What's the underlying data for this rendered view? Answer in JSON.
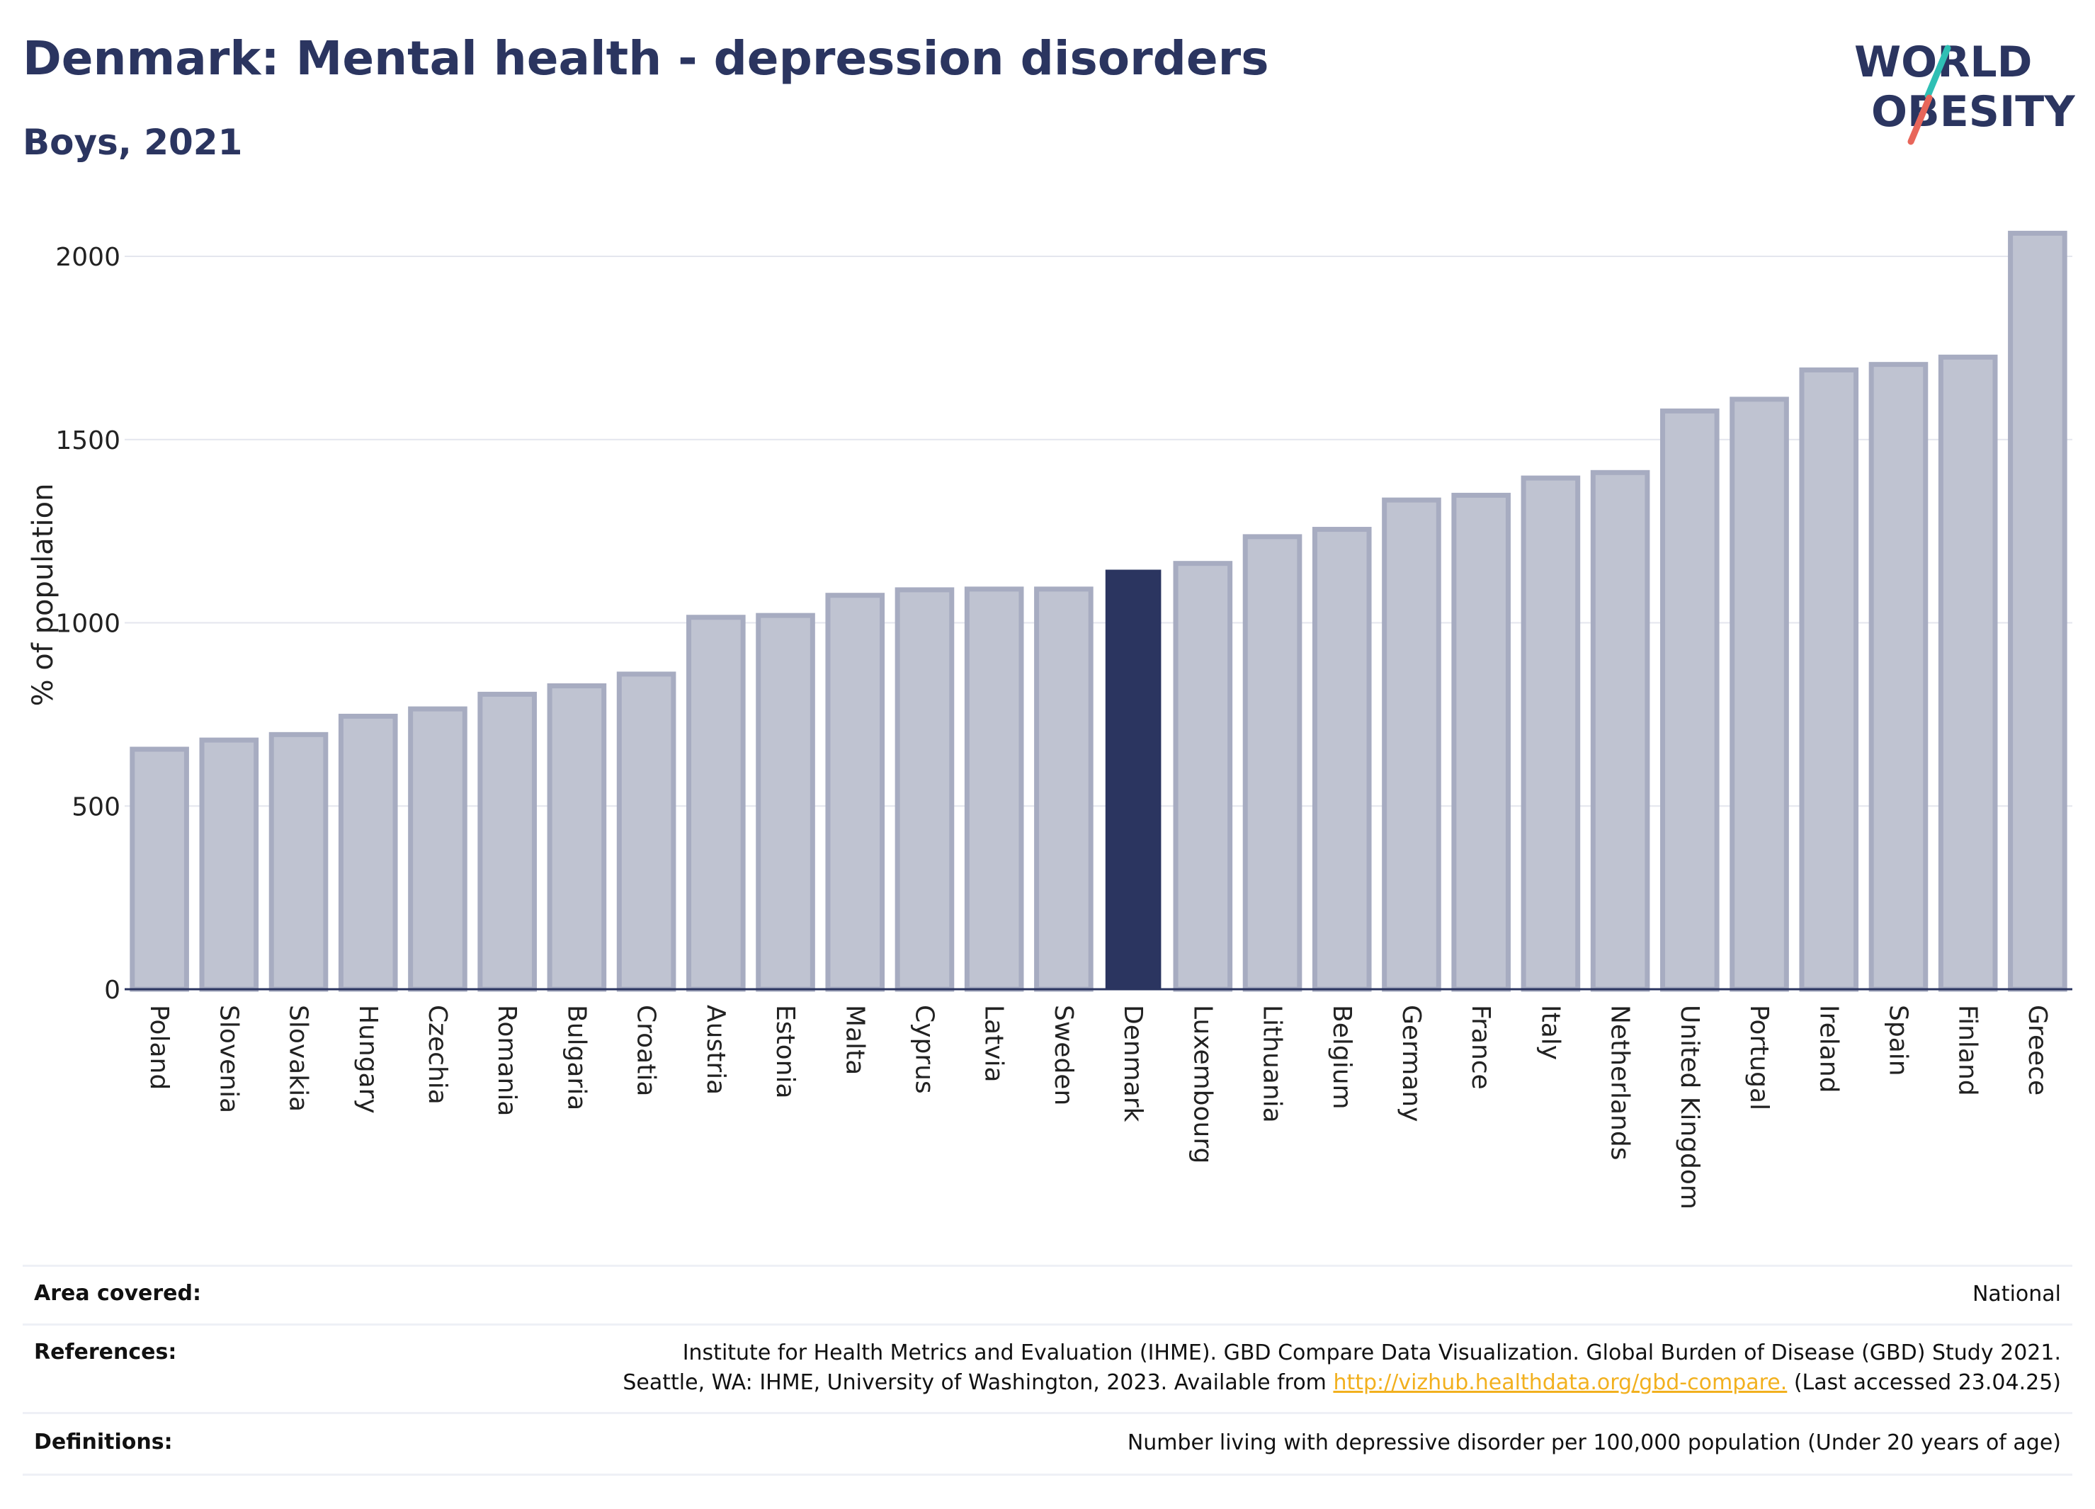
{
  "header": {
    "title": "Denmark: Mental health - depression disorders",
    "subtitle": "Boys, 2021",
    "logo_line1": "WORLD",
    "logo_line2": "OBESITY"
  },
  "colors": {
    "bar_default": "#bfc3d1",
    "bar_stroke": "#a7acc1",
    "bar_highlight": "#2b3560",
    "title": "#2b3560",
    "logo_teal": "#2fbfb4",
    "logo_red": "#e8665a",
    "link": "#f2b01e"
  },
  "chart_data": {
    "type": "bar",
    "title": "Denmark: Mental health - depression disorders",
    "subtitle": "Boys, 2021",
    "xlabel": "",
    "ylabel": "% of population",
    "ylim": [
      0,
      2100
    ],
    "yticks": [
      0,
      500,
      1000,
      1500,
      2000
    ],
    "grid": true,
    "highlight": "Denmark",
    "categories": [
      "Poland",
      "Slovenia",
      "Slovakia",
      "Hungary",
      "Czechia",
      "Romania",
      "Bulgaria",
      "Croatia",
      "Austria",
      "Estonia",
      "Malta",
      "Cyprus",
      "Latvia",
      "Sweden",
      "Denmark",
      "Luxembourg",
      "Lithuania",
      "Belgium",
      "Germany",
      "France",
      "Italy",
      "Netherlands",
      "United Kingdom",
      "Portugal",
      "Ireland",
      "Spain",
      "Finland",
      "Greece"
    ],
    "values": [
      655,
      680,
      695,
      745,
      765,
      805,
      828,
      860,
      1015,
      1020,
      1075,
      1090,
      1092,
      1092,
      1143,
      1162,
      1235,
      1255,
      1335,
      1348,
      1395,
      1410,
      1578,
      1610,
      1690,
      1705,
      1725,
      2063
    ]
  },
  "info": {
    "area_label": "Area covered:",
    "area_value": "National",
    "references_label": "References:",
    "references_line1": "Institute for Health Metrics and Evaluation (IHME). GBD Compare Data Visualization. Global Burden of Disease (GBD) Study 2021.",
    "references_line2_pre": "Seattle, WA: IHME, University of Washington, 2023. Available from ",
    "references_link": "http://vizhub.healthdata.org/gbd-compare.",
    "references_line2_post": " (Last accessed 23.04.25)",
    "definitions_label": "Definitions:",
    "definitions_value": "Number living with depressive disorder per 100,000 population (Under 20 years of age)"
  }
}
